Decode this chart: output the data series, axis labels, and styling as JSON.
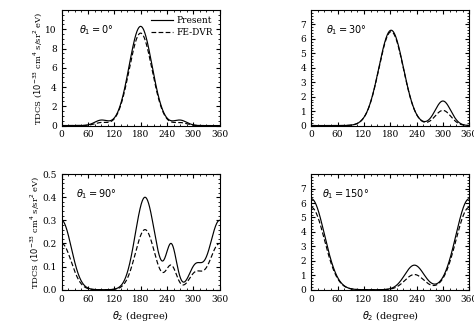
{
  "panels": [
    {
      "theta1_label": "$\\theta_1 = 0°$",
      "ylim": [
        0,
        12
      ],
      "yticks": [
        0,
        2,
        4,
        6,
        8,
        10
      ],
      "show_legend": true
    },
    {
      "theta1_label": "$\\theta_1 = 30°$",
      "ylim": [
        0,
        8
      ],
      "yticks": [
        0,
        1,
        2,
        3,
        4,
        5,
        6,
        7
      ],
      "show_legend": false
    },
    {
      "theta1_label": "$\\theta_1 = 90°$",
      "ylim": [
        0,
        0.5
      ],
      "yticks": [
        0.0,
        0.1,
        0.2,
        0.3,
        0.4,
        0.5
      ],
      "show_legend": false
    },
    {
      "theta1_label": "$\\theta_1 = 150°$",
      "ylim": [
        0,
        8
      ],
      "yticks": [
        0,
        1,
        2,
        3,
        4,
        5,
        6,
        7
      ],
      "show_legend": false
    }
  ],
  "xlabel": "$\\theta_2$ (degree)",
  "xticks": [
    0,
    60,
    120,
    180,
    240,
    300,
    360
  ],
  "legend_present": "Present",
  "legend_fedvr": "FE-DVR"
}
